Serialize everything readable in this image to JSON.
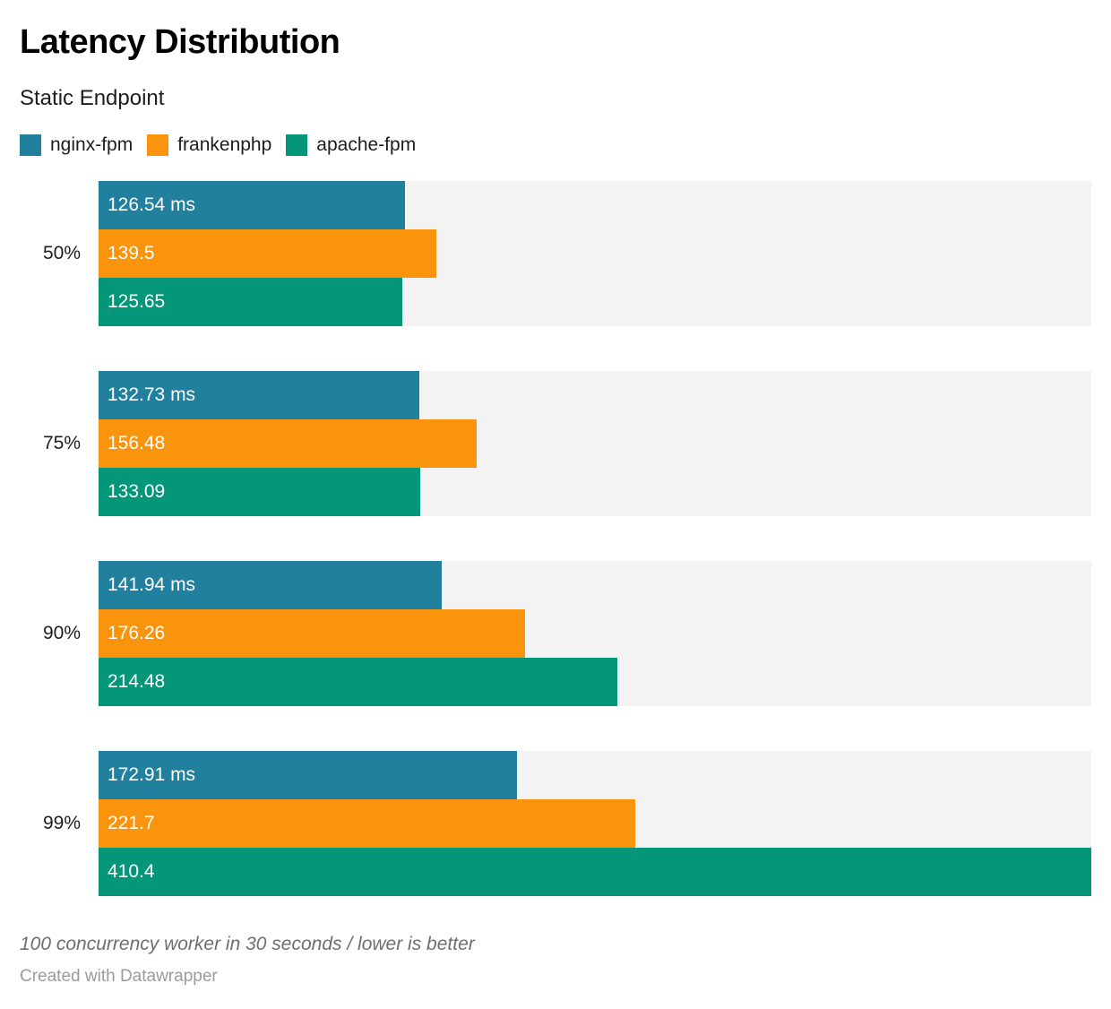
{
  "title": "Latency Distribution",
  "subtitle": "Static Endpoint",
  "legend": [
    {
      "name": "nginx-fpm",
      "color": "#20809e"
    },
    {
      "name": "frankenphp",
      "color": "#f9940c"
    },
    {
      "name": "apache-fpm",
      "color": "#049678"
    }
  ],
  "notes": {
    "footnote": "100 concurrency worker in 30 seconds / lower is better",
    "attribution": "Created with Datawrapper"
  },
  "chart_data": {
    "type": "bar",
    "orientation": "horizontal",
    "title": "Latency Distribution",
    "subtitle": "Static Endpoint",
    "unit": "ms",
    "categories": [
      "50%",
      "75%",
      "90%",
      "99%"
    ],
    "series": [
      {
        "name": "nginx-fpm",
        "color": "#20809e",
        "values": [
          126.54,
          132.73,
          141.94,
          172.91
        ],
        "labels": [
          "126.54 ms",
          "132.73 ms",
          "141.94 ms",
          "172.91 ms"
        ]
      },
      {
        "name": "frankenphp",
        "color": "#f9940c",
        "values": [
          139.5,
          156.48,
          176.26,
          221.7
        ],
        "labels": [
          "139.5",
          "156.48",
          "176.26",
          "221.7"
        ]
      },
      {
        "name": "apache-fpm",
        "color": "#049678",
        "values": [
          125.65,
          133.09,
          214.48,
          410.4
        ],
        "labels": [
          "125.65",
          "133.09",
          "214.48",
          "410.4"
        ]
      }
    ],
    "xlim": [
      0,
      410.4
    ],
    "value_labels": "inside-start",
    "track_color": "#f3f3f3",
    "grid": false,
    "legend_position": "top-left"
  }
}
